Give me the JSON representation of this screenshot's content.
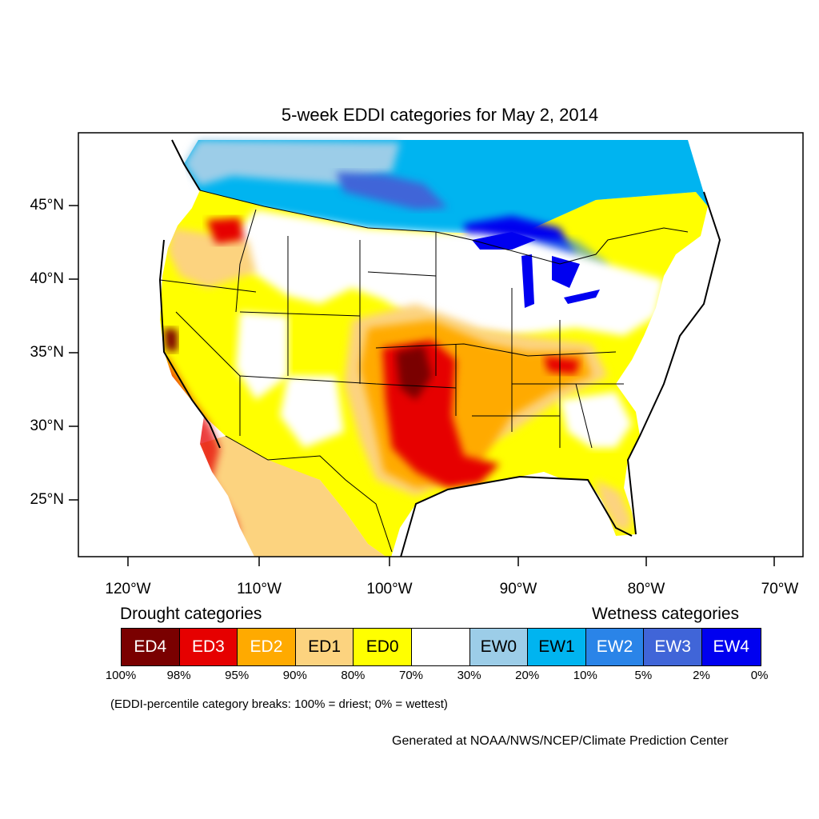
{
  "title": "5-week EDDI categories for May 2, 2014",
  "map": {
    "lat_labels": [
      "45°N",
      "40°N",
      "35°N",
      "30°N",
      "25°N"
    ],
    "lon_labels": [
      "120°W",
      "110°W",
      "100°W",
      "90°W",
      "80°W",
      "70°W"
    ]
  },
  "legend": {
    "drought_heading": "Drought categories",
    "wetness_heading": "Wetness categories",
    "categories": [
      {
        "label": "ED4",
        "color": "#7a0000",
        "text_color": "#ffffff"
      },
      {
        "label": "ED3",
        "color": "#e60000",
        "text_color": "#ffffff"
      },
      {
        "label": "ED2",
        "color": "#ffaa00",
        "text_color": "#ffffff"
      },
      {
        "label": "ED1",
        "color": "#fcd37f",
        "text_color": "#000000"
      },
      {
        "label": "ED0",
        "color": "#ffff00",
        "text_color": "#000000"
      },
      {
        "label": "",
        "color": "#ffffff",
        "text_color": "#000000"
      },
      {
        "label": "EW0",
        "color": "#9ccde8",
        "text_color": "#000000"
      },
      {
        "label": "EW1",
        "color": "#00b4f0",
        "text_color": "#000000"
      },
      {
        "label": "EW2",
        "color": "#2a84e8",
        "text_color": "#ffffff"
      },
      {
        "label": "EW3",
        "color": "#4065d8",
        "text_color": "#ffffff"
      },
      {
        "label": "EW4",
        "color": "#0000f0",
        "text_color": "#ffffff"
      }
    ],
    "breaks": [
      "100%",
      "98%",
      "95%",
      "90%",
      "80%",
      "70%",
      "30%",
      "20%",
      "10%",
      "5%",
      "2%",
      "0%"
    ]
  },
  "note": "(EDDI-percentile category breaks: 100% = driest; 0% = wettest)",
  "credit": "Generated at NOAA/NWS/NCEP/Climate Prediction Center"
}
